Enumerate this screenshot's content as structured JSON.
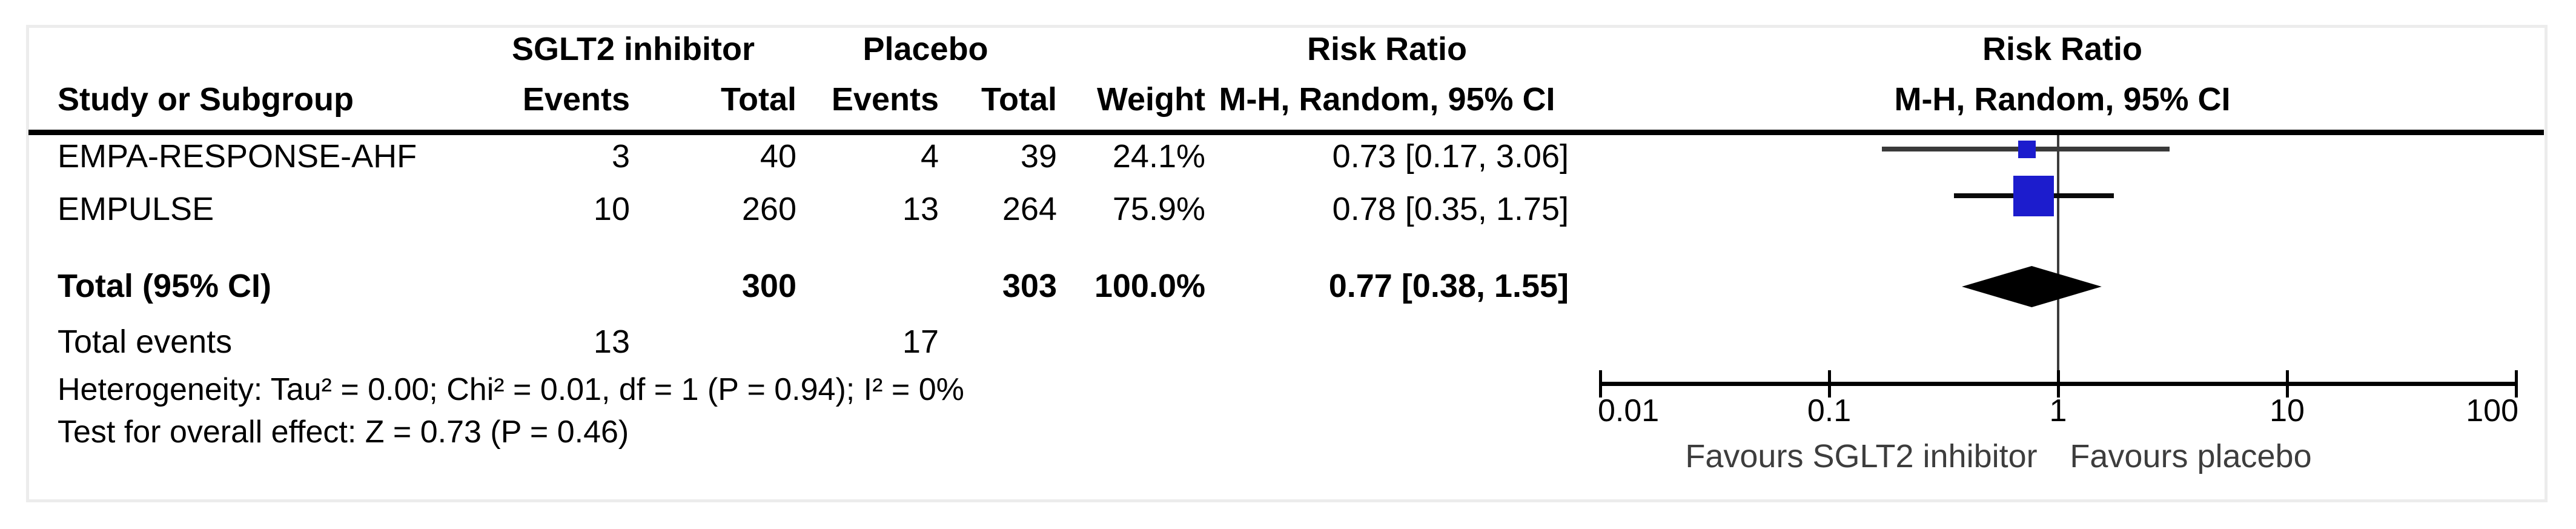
{
  "colors": {
    "marker": "#1c1ccd",
    "diamond": "#000000",
    "axis": "#000000",
    "null_line": "#3c3c3c",
    "ci_line": "#2e2e2e",
    "favours_text": "#3d3d3d",
    "frame_border": "#ececec"
  },
  "table": {
    "group_headers": [
      "SGLT2 inhibitor",
      "Placebo"
    ],
    "effect_header": {
      "line1": "Risk Ratio",
      "line2": "M-H, Random, 95% CI"
    },
    "plot_header": {
      "line1": "Risk Ratio",
      "line2": "M-H, Random, 95% CI"
    },
    "columns": {
      "study": "Study or Subgroup",
      "events1": "Events",
      "total1": "Total",
      "events2": "Events",
      "total2": "Total",
      "weight": "Weight"
    },
    "rows": [
      {
        "study": "EMPA-RESPONSE-AHF",
        "events1": "3",
        "total1": "40",
        "events2": "4",
        "total2": "39",
        "weight": "24.1%",
        "ci_text": "0.73 [0.17, 3.06]"
      },
      {
        "study": "EMPULSE",
        "events1": "10",
        "total1": "260",
        "events2": "13",
        "total2": "264",
        "weight": "75.9%",
        "ci_text": "0.78 [0.35, 1.75]"
      }
    ],
    "total_row": {
      "label": "Total (95% CI)",
      "total1": "300",
      "total2": "303",
      "weight": "100.0%",
      "ci_text": "0.77 [0.38, 1.55]"
    },
    "total_events": {
      "label": "Total events",
      "events1": "13",
      "events2": "17"
    },
    "heterogeneity": "Heterogeneity: Tau² = 0.00; Chi² = 0.01, df = 1 (P = 0.94); I² = 0%",
    "overall_effect": "Test for overall effect: Z = 0.73 (P = 0.46)"
  },
  "chart_data": {
    "type": "forest",
    "effect_measure": "Risk Ratio",
    "method": "M-H, Random, 95% CI",
    "scale": "log10",
    "xlim": [
      0.01,
      100
    ],
    "null_line": 1,
    "axis_tick_labels": [
      "0.01",
      "0.1",
      "1",
      "10",
      "100"
    ],
    "studies": [
      {
        "name": "EMPA-RESPONSE-AHF",
        "rr": 0.73,
        "ci_low": 0.17,
        "ci_high": 3.06,
        "weight_pct": 24.1,
        "events_treatment": 3,
        "total_treatment": 40,
        "events_control": 4,
        "total_control": 39
      },
      {
        "name": "EMPULSE",
        "rr": 0.78,
        "ci_low": 0.35,
        "ci_high": 1.75,
        "weight_pct": 75.9,
        "events_treatment": 10,
        "total_treatment": 260,
        "events_control": 13,
        "total_control": 264
      }
    ],
    "total": {
      "rr": 0.77,
      "ci_low": 0.38,
      "ci_high": 1.55,
      "weight_pct": 100.0,
      "total_treatment": 300,
      "total_control": 303,
      "events_treatment": 13,
      "events_control": 17
    },
    "favours_left": "Favours SGLT2 inhibitor",
    "favours_right": "Favours placebo"
  }
}
